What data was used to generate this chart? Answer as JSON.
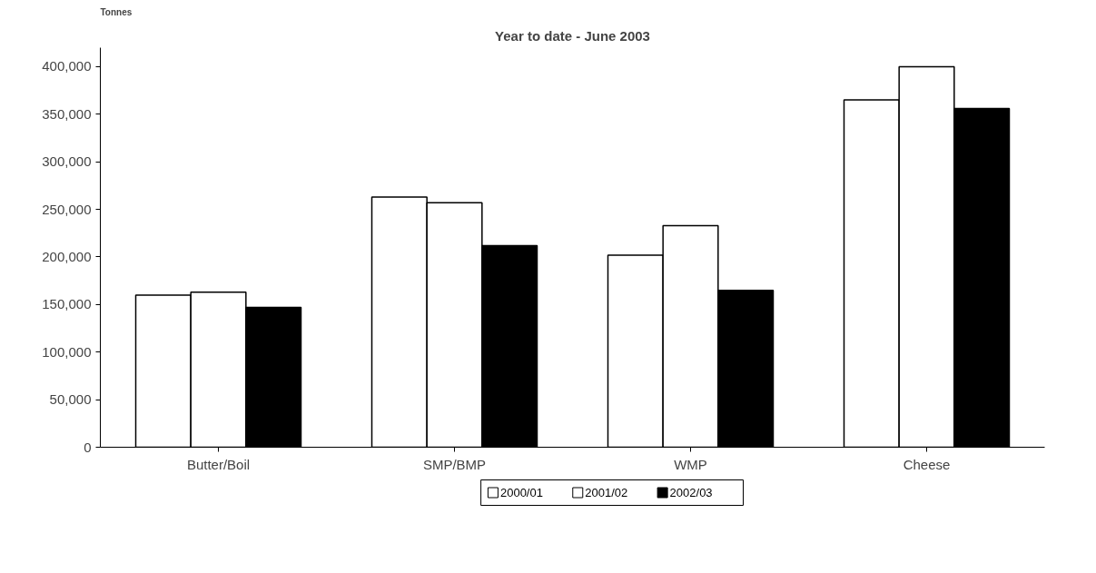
{
  "chart_data": {
    "type": "bar",
    "title": "Year to date - June 2003",
    "ylabel": "Tonnes",
    "categories": [
      "Butter/Boil",
      "SMP/BMP",
      "WMP",
      "Cheese"
    ],
    "series": [
      {
        "name": "2000/01",
        "color": "#ffffff",
        "values": [
          160000,
          263000,
          202000,
          365000
        ]
      },
      {
        "name": "2001/02",
        "color": "#ffffff",
        "values": [
          163000,
          257000,
          233000,
          400000
        ]
      },
      {
        "name": "2002/03",
        "color": "#000000",
        "values": [
          147000,
          212000,
          165000,
          356000
        ]
      }
    ],
    "ylim": [
      0,
      420000
    ],
    "yticks": [
      {
        "value": 0,
        "label": "0"
      },
      {
        "value": 50000,
        "label": "50,000"
      },
      {
        "value": 100000,
        "label": "100,000"
      },
      {
        "value": 150000,
        "label": "150,000"
      },
      {
        "value": 200000,
        "label": "200,000"
      },
      {
        "value": 250000,
        "label": "250,000"
      },
      {
        "value": 300000,
        "label": "300,000"
      },
      {
        "value": 350000,
        "label": "350,000"
      },
      {
        "value": 400000,
        "label": "400,000"
      }
    ],
    "grid": false,
    "legend": "bottom"
  }
}
